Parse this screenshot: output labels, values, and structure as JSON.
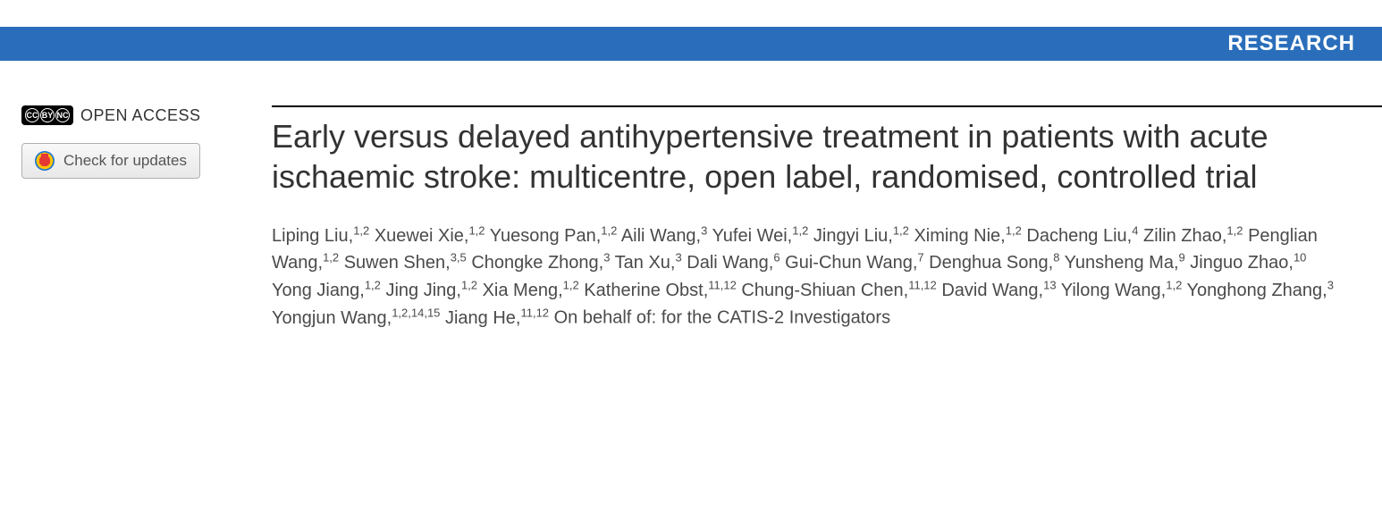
{
  "banner": {
    "label": "RESEARCH",
    "bg_color": "#2a6ebb",
    "text_color": "#ffffff"
  },
  "sidebar": {
    "cc_label_1": "CC",
    "cc_label_2": "BY",
    "cc_label_3": "NC",
    "open_access_text": "OPEN ACCESS",
    "check_updates_text": "Check for updates"
  },
  "article": {
    "title": "Early versus delayed antihypertensive treatment in patients with acute ischaemic stroke: multicentre, open label, randomised, controlled trial",
    "authors": [
      {
        "name": "Liping Liu",
        "aff": "1,2"
      },
      {
        "name": "Xuewei Xie",
        "aff": "1,2"
      },
      {
        "name": "Yuesong Pan",
        "aff": "1,2"
      },
      {
        "name": "Aili Wang",
        "aff": "3"
      },
      {
        "name": "Yufei Wei",
        "aff": "1,2"
      },
      {
        "name": "Jingyi Liu",
        "aff": "1,2"
      },
      {
        "name": "Ximing Nie",
        "aff": "1,2"
      },
      {
        "name": "Dacheng Liu",
        "aff": "4"
      },
      {
        "name": "Zilin Zhao",
        "aff": "1,2"
      },
      {
        "name": "Penglian Wang",
        "aff": "1,2"
      },
      {
        "name": "Suwen Shen",
        "aff": "3,5"
      },
      {
        "name": "Chongke Zhong",
        "aff": "3"
      },
      {
        "name": "Tan Xu",
        "aff": "3"
      },
      {
        "name": "Dali Wang",
        "aff": "6"
      },
      {
        "name": "Gui-Chun Wang",
        "aff": "7"
      },
      {
        "name": "Denghua Song",
        "aff": "8"
      },
      {
        "name": "Yunsheng Ma",
        "aff": "9"
      },
      {
        "name": "Jinguo Zhao",
        "aff": "10"
      },
      {
        "name": "Yong Jiang",
        "aff": "1,2"
      },
      {
        "name": "Jing Jing",
        "aff": "1,2"
      },
      {
        "name": "Xia Meng",
        "aff": "1,2"
      },
      {
        "name": "Katherine Obst",
        "aff": "11,12"
      },
      {
        "name": "Chung-Shiuan Chen",
        "aff": "11,12"
      },
      {
        "name": "David Wang",
        "aff": "13"
      },
      {
        "name": "Yilong Wang",
        "aff": "1,2"
      },
      {
        "name": "Yonghong Zhang",
        "aff": "3"
      },
      {
        "name": "Yongjun Wang",
        "aff": "1,2,14,15"
      },
      {
        "name": "Jiang He",
        "aff": "11,12"
      }
    ],
    "behalf_text": "On behalf of: for the CATIS-2 Investigators"
  },
  "colors": {
    "banner_bg": "#2a6ebb",
    "text_primary": "#333333",
    "text_secondary": "#4a4a4a",
    "border": "#000000"
  },
  "typography": {
    "title_fontsize": 36,
    "banner_fontsize": 24,
    "authors_fontsize": 20,
    "sidebar_fontsize": 18
  }
}
